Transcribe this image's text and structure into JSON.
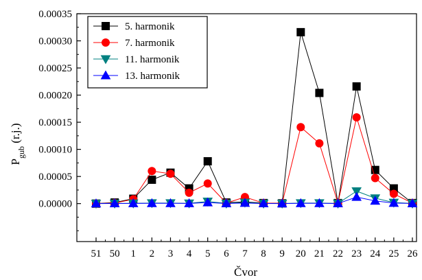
{
  "chart_data": {
    "type": "line",
    "xlabel": "Čvor",
    "ylabel": {
      "main": "P",
      "sub": "gub",
      "unit": " (r.j.)"
    },
    "x_categories": [
      "51",
      "50",
      "1",
      "2",
      "3",
      "4",
      "5",
      "6",
      "7",
      "8",
      "9",
      "20",
      "21",
      "22",
      "23",
      "24",
      "25",
      "26"
    ],
    "y_ticks": [
      "0.00000",
      "0.00005",
      "0.00010",
      "0.00015",
      "0.00020",
      "0.00025",
      "0.00030",
      "0.00035"
    ],
    "ylim": [
      -7e-05,
      0.00035
    ],
    "y_tick_values": [
      0,
      5e-05,
      0.0001,
      0.00015,
      0.0002,
      0.00025,
      0.0003,
      0.00035
    ],
    "grid": false,
    "legend_position": "top-left",
    "series": [
      {
        "name": "5. harmonik",
        "marker": "square",
        "color": "#000000",
        "values": [
          0,
          2e-06,
          9e-06,
          4.4e-05,
          5.7e-05,
          2.8e-05,
          7.8e-05,
          2e-06,
          3e-06,
          1e-06,
          5e-07,
          0.000316,
          0.000204,
          1e-06,
          0.000216,
          6.2e-05,
          2.8e-05,
          1e-06
        ]
      },
      {
        "name": "7. harmonik",
        "marker": "circle",
        "color": "#ff0000",
        "values": [
          0,
          1e-06,
          8e-06,
          6e-05,
          5.5e-05,
          2e-05,
          3.7e-05,
          1e-06,
          1.2e-05,
          1e-06,
          5e-07,
          0.000141,
          0.000111,
          1e-06,
          0.000159,
          4.7e-05,
          1.8e-05,
          1e-06
        ]
      },
      {
        "name": "11. harmonik",
        "marker": "triangle-down",
        "color": "#008080",
        "values": [
          0,
          3e-07,
          5e-07,
          1e-06,
          1e-06,
          5e-07,
          4e-06,
          3e-07,
          2e-06,
          3e-07,
          2e-07,
          1e-06,
          1e-06,
          3e-07,
          2.3e-05,
          1e-05,
          2e-06,
          3e-07
        ]
      },
      {
        "name": "13. harmonik",
        "marker": "triangle-up",
        "color": "#0000ff",
        "values": [
          0,
          2e-07,
          3e-07,
          5e-07,
          5e-07,
          3e-07,
          2e-06,
          2e-07,
          1e-06,
          2e-07,
          1e-07,
          5e-07,
          5e-07,
          2e-07,
          1.2e-05,
          5e-06,
          1e-06,
          2e-07
        ]
      }
    ]
  }
}
